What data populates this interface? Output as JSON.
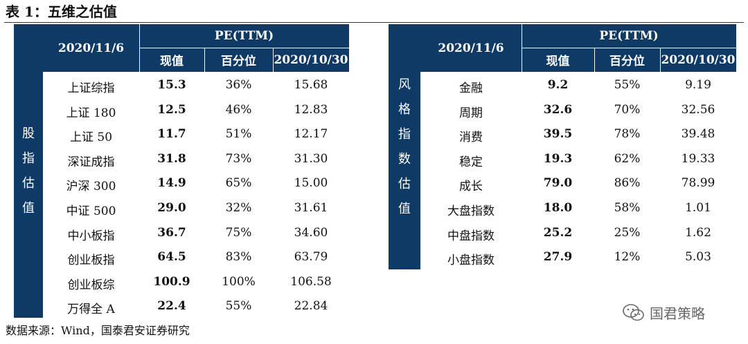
{
  "caption": "表 1：五维之估值",
  "left_table": {
    "date_header": "2020/11/6",
    "group_header": "PE(TTM)",
    "col_headers": [
      "现值",
      "百分位",
      "2020/10/30"
    ],
    "side_label": [
      "股",
      "指",
      "估",
      "值"
    ],
    "rows": [
      {
        "name": "上证综指",
        "value": "15.3",
        "pct": "36%",
        "prev": "15.68"
      },
      {
        "name": "上证 180",
        "value": "12.5",
        "pct": "46%",
        "prev": "12.83"
      },
      {
        "name": "上证 50",
        "value": "11.7",
        "pct": "51%",
        "prev": "12.17"
      },
      {
        "name": "深证成指",
        "value": "31.8",
        "pct": "73%",
        "prev": "31.30"
      },
      {
        "name": "沪深 300",
        "value": "14.9",
        "pct": "65%",
        "prev": "15.00"
      },
      {
        "name": "中证 500",
        "value": "29.0",
        "pct": "32%",
        "prev": "31.61"
      },
      {
        "name": "中小板指",
        "value": "36.7",
        "pct": "75%",
        "prev": "34.60"
      },
      {
        "name": "创业板指",
        "value": "64.5",
        "pct": "83%",
        "prev": "63.79"
      },
      {
        "name": "创业板综",
        "value": "100.9",
        "pct": "100%",
        "prev": "106.58"
      },
      {
        "name": "万得全 A",
        "value": "22.4",
        "pct": "55%",
        "prev": "22.84"
      }
    ]
  },
  "right_table": {
    "date_header": "2020/11/6",
    "group_header": "PE(TTM)",
    "col_headers": [
      "现值",
      "百分位",
      "2020/10/30"
    ],
    "side_label": [
      "风",
      "格",
      "指",
      "数",
      "估",
      "值"
    ],
    "rows": [
      {
        "name": "金融",
        "value": "9.2",
        "pct": "55%",
        "prev": "9.19"
      },
      {
        "name": "周期",
        "value": "32.6",
        "pct": "70%",
        "prev": "32.56"
      },
      {
        "name": "消费",
        "value": "39.5",
        "pct": "78%",
        "prev": "39.48"
      },
      {
        "name": "稳定",
        "value": "19.3",
        "pct": "62%",
        "prev": "19.33"
      },
      {
        "name": "成长",
        "value": "79.0",
        "pct": "86%",
        "prev": "78.99"
      },
      {
        "name": "大盘指数",
        "value": "18.0",
        "pct": "58%",
        "prev": "1.01"
      },
      {
        "name": "中盘指数",
        "value": "25.2",
        "pct": "25%",
        "prev": "1.62"
      },
      {
        "name": "小盘指数",
        "value": "27.9",
        "pct": "12%",
        "prev": "5.03"
      }
    ]
  },
  "source": "数据来源：Wind，国泰君安证券研究",
  "watermark": "国君策略",
  "colors": {
    "header_bg": "#0f3a66",
    "header_text": "#ffffff"
  }
}
